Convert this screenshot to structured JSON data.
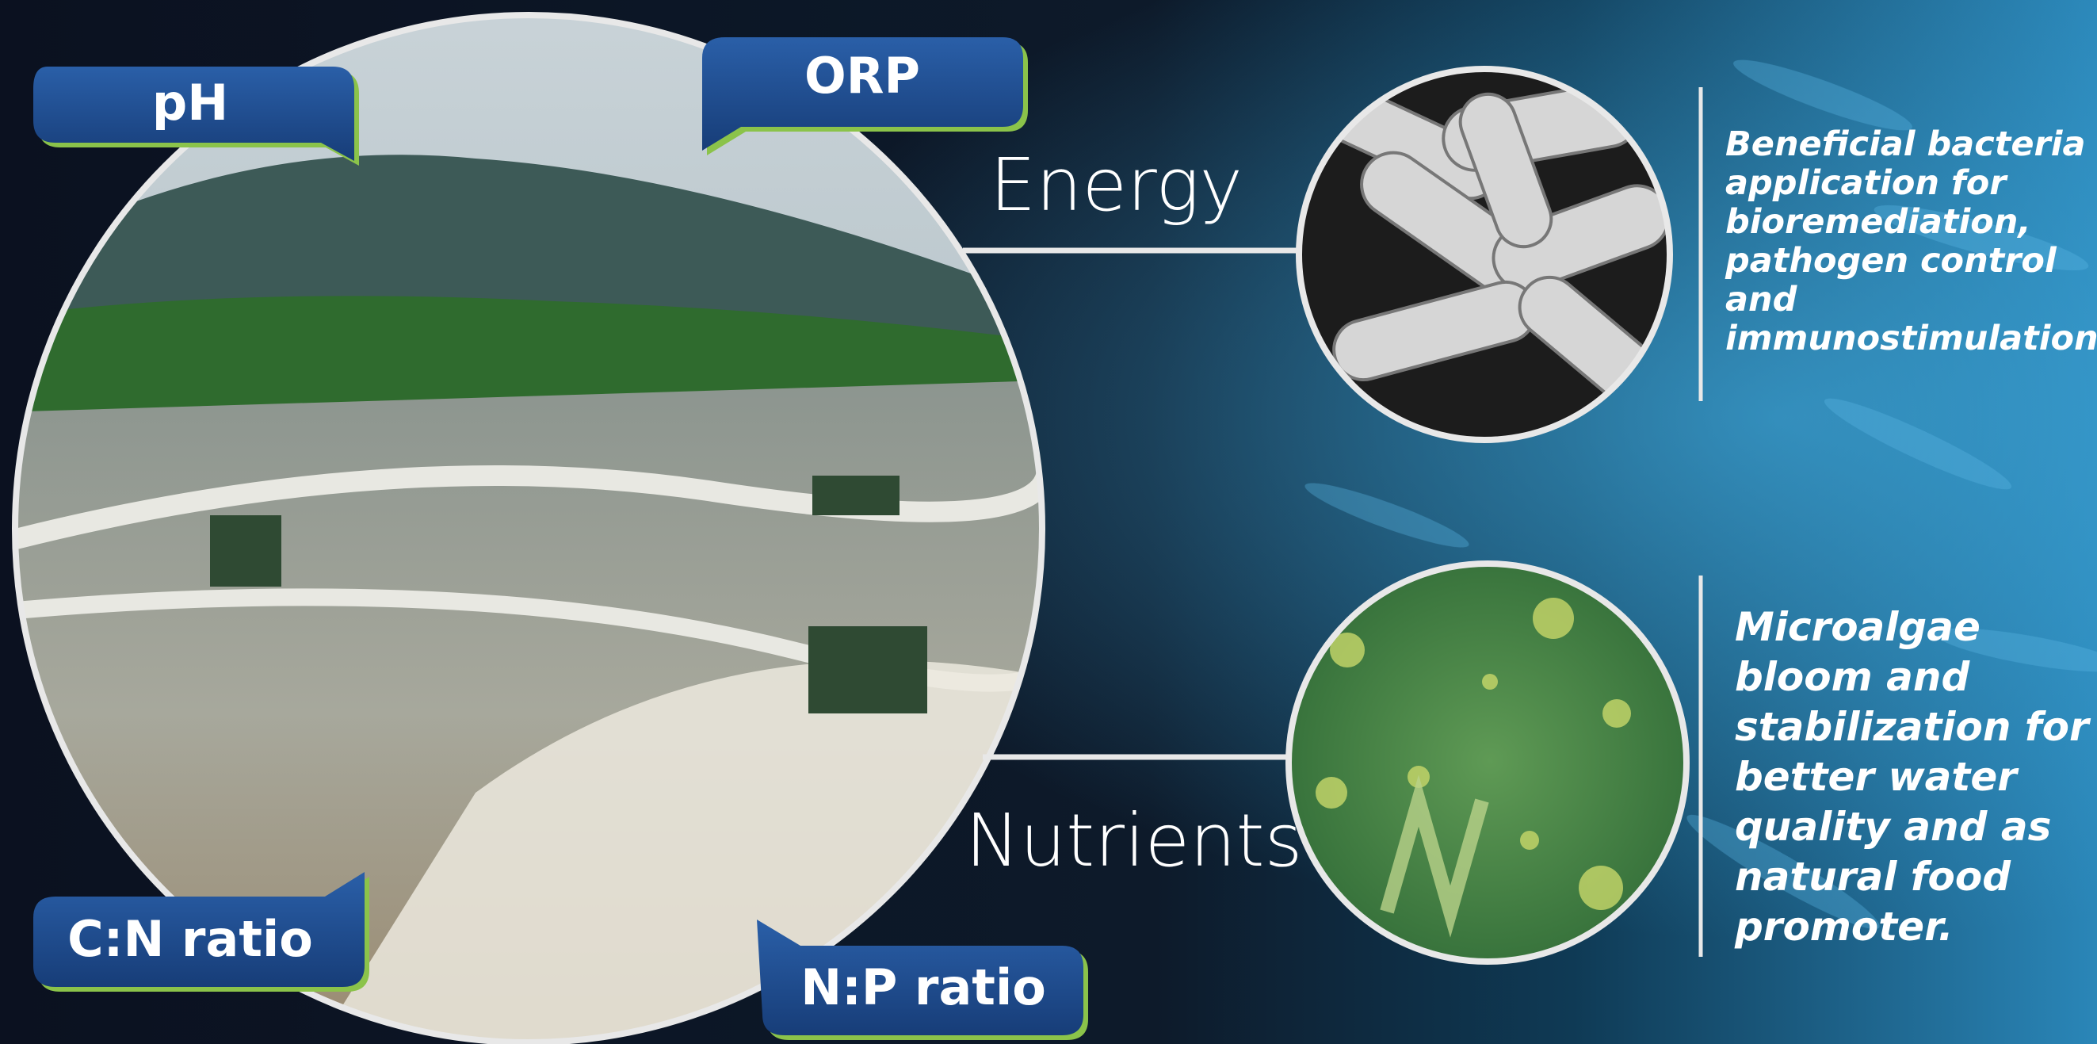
{
  "callouts": [
    "pH",
    "ORP",
    "C:N ratio",
    "N:P ratio"
  ],
  "factors": [
    "Energy",
    "Nutrients"
  ],
  "descriptions": [
    {
      "lines": [
        "Beneficial bacteria",
        "application for",
        "bioremediation,",
        "pathogen control",
        "and",
        "immunostimulation"
      ]
    },
    {
      "lines": [
        "Microalgae",
        "bloom and",
        "stabilization for",
        "better water",
        "quality and as",
        "natural food",
        "promoter."
      ]
    }
  ]
}
